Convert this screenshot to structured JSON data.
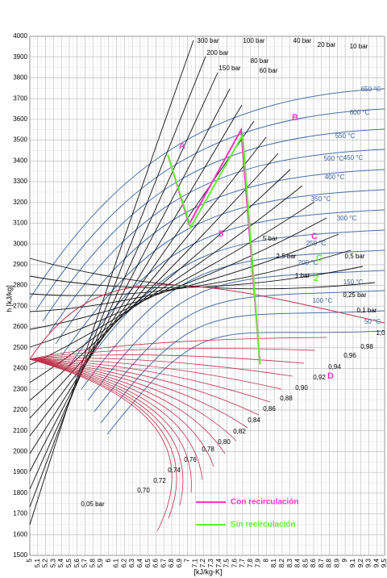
{
  "chart_data": {
    "type": "line",
    "x_label": "[kJ/kg-K]",
    "y_label": "h [kJ/kg]",
    "xlim": [
      5,
      9.5
    ],
    "ylim": [
      1500,
      4000
    ],
    "xticks": [
      5,
      {
        "value": 5.1,
        "label": "5,1"
      },
      {
        "value": 5.2,
        "label": "5,2"
      },
      {
        "value": 5.3,
        "label": "5,3"
      },
      {
        "value": 5.4,
        "label": "5,4"
      },
      {
        "value": 5.5,
        "label": "5,5"
      },
      {
        "value": 5.6,
        "label": "5,6"
      },
      {
        "value": 5.7,
        "label": "5,7"
      },
      {
        "value": 5.8,
        "label": "5,8"
      },
      {
        "value": 5.9,
        "label": "5,9"
      },
      6,
      {
        "value": 6.1,
        "label": "6,1"
      },
      {
        "value": 6.2,
        "label": "6,2"
      },
      {
        "value": 6.3,
        "label": "6,3"
      },
      {
        "value": 6.4,
        "label": "6,4"
      },
      {
        "value": 6.5,
        "label": "6,5"
      },
      {
        "value": 6.6,
        "label": "6,6"
      },
      {
        "value": 6.7,
        "label": "6,7"
      },
      {
        "value": 6.8,
        "label": "6,8"
      },
      {
        "value": 6.9,
        "label": "6,9"
      },
      7,
      {
        "value": 7.1,
        "label": "7,1"
      },
      {
        "value": 7.2,
        "label": "7,2"
      },
      {
        "value": 7.3,
        "label": "7,3"
      },
      {
        "value": 7.4,
        "label": "7,4"
      },
      {
        "value": 7.5,
        "label": "7,5"
      },
      {
        "value": 7.6,
        "label": "7,6"
      },
      {
        "value": 7.7,
        "label": "7,7"
      },
      {
        "value": 7.8,
        "label": "7,8"
      },
      {
        "value": 7.9,
        "label": "7,9"
      },
      8,
      {
        "value": 8.1,
        "label": "8,1"
      },
      {
        "value": 8.2,
        "label": "8,2"
      },
      {
        "value": 8.3,
        "label": "8,3"
      },
      {
        "value": 8.4,
        "label": "8,4"
      },
      {
        "value": 8.5,
        "label": "8,5"
      },
      {
        "value": 8.6,
        "label": "8,6"
      },
      {
        "value": 8.7,
        "label": "8,7"
      },
      {
        "value": 8.8,
        "label": "8,8"
      },
      {
        "value": 8.9,
        "label": "8,9"
      },
      9,
      {
        "value": 9.1,
        "label": "9,1"
      },
      {
        "value": 9.2,
        "label": "9,2"
      },
      {
        "value": 9.3,
        "label": "9,3"
      },
      {
        "value": 9.4,
        "label": "9,4"
      },
      {
        "value": 9.5,
        "label": "9,5"
      }
    ],
    "yticks": [
      1500,
      1600,
      1700,
      1800,
      1900,
      2000,
      2100,
      2200,
      2300,
      2400,
      2500,
      2600,
      2700,
      2800,
      2900,
      3000,
      3100,
      3200,
      3300,
      3400,
      3500,
      3600,
      3700,
      3800,
      3900,
      4000
    ],
    "grid": true,
    "legend": "lower center",
    "series": [
      {
        "name": "Con recirculación",
        "color": "#ff33cc",
        "x": [
          6.75,
          7.02,
          7.68,
          7.92
        ],
        "values": [
          3430,
          3095,
          3550,
          2420
        ]
      },
      {
        "name": "Sin recirculación",
        "color": "#66ee33",
        "x": [
          6.75,
          7.04,
          7.7,
          7.92
        ],
        "values": [
          3430,
          3080,
          3525,
          2420
        ]
      }
    ],
    "point_labels": [
      "A",
      "B",
      "C",
      "C",
      "5",
      "2",
      "D"
    ],
    "isobar_labels": [
      "300 bar",
      "200 bar",
      "150 bar",
      "100 bar",
      "80 bar",
      "60 bar",
      "40 bar",
      "20 bar",
      "10 bar",
      "5 bar",
      "2,5 bar",
      "1 bar",
      "0,5 bar",
      "0,25 bar",
      "0,1 bar",
      "0,05 bar"
    ],
    "isotherm_labels": [
      "650 °C",
      "600 °C",
      "550 °C",
      "500 °C",
      "450 °C",
      "400 °C",
      "350 °C",
      "300 °C",
      "250 °C",
      "200 °C",
      "150 °C",
      "100 °C",
      "50 °C"
    ],
    "quality_labels": [
      "1,0",
      "0,98",
      "0,96",
      "0,94",
      "0,92",
      "0,90",
      "0,88",
      "0,86",
      "0,84",
      "0,82",
      "0,80",
      "0,78",
      "0,76",
      "0,74",
      "0,72",
      "0,70"
    ]
  }
}
